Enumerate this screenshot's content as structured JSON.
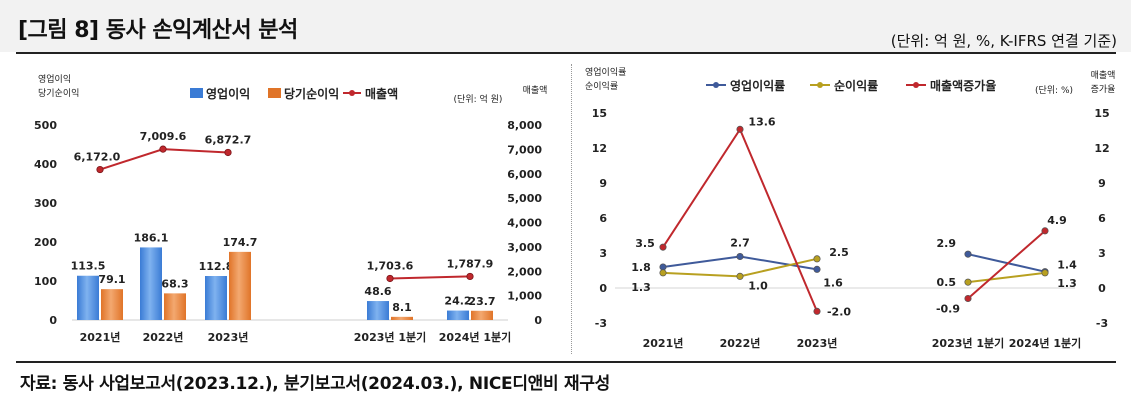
{
  "header": {
    "title": "[그림 8] 동사 손익계산서 분석",
    "unit_note": "(단위: 억 원, %, K-IFRS 연결 기준)"
  },
  "footer": {
    "source": "자료: 동사 사업보고서(2023.12.), 분기보고서(2024.03.), NICE디앤비 재구성"
  },
  "chart_data": [
    {
      "type": "bar",
      "title": "",
      "left_axis_label": [
        "영업이익",
        "당기순이익"
      ],
      "right_axis_label": "매출액",
      "unit_note": "(단위: 억 원)",
      "categories": [
        "2021년",
        "2022년",
        "2023년",
        "2023년 1분기",
        "2024년 1분기"
      ],
      "series": [
        {
          "name": "영업이익",
          "kind": "bar",
          "axis": "left",
          "color": "#3a7bd5",
          "values": [
            113.5,
            186.1,
            112.8,
            48.6,
            24.2
          ],
          "labels": [
            "113.5",
            "186.1",
            "112.8",
            "48.6",
            "24.2"
          ]
        },
        {
          "name": "당기순이익",
          "kind": "bar",
          "axis": "left",
          "color": "#e07428",
          "values": [
            79.1,
            68.3,
            174.7,
            8.1,
            23.7
          ],
          "labels": [
            "79.1",
            "68.3",
            "174.7",
            "8.1",
            "23.7"
          ]
        },
        {
          "name": "매출액",
          "kind": "line",
          "axis": "right",
          "color": "#c0282d",
          "values": [
            6172.0,
            7009.6,
            6872.7,
            1703.6,
            1787.9
          ],
          "labels": [
            "6,172.0",
            "7,009.6",
            "6,872.7",
            "1,703.6",
            "1,787.9"
          ]
        }
      ],
      "line_segments": [
        [
          0,
          1,
          2
        ],
        [
          3,
          4
        ]
      ],
      "ylim_left": [
        0,
        500
      ],
      "yticks_left": [
        "0",
        "100",
        "200",
        "300",
        "400",
        "500"
      ],
      "ylim_right": [
        0,
        8000
      ],
      "yticks_right": [
        "0",
        "1,000",
        "2,000",
        "3,000",
        "4,000",
        "5,000",
        "6,000",
        "7,000",
        "8,000"
      ],
      "legend_position": "top"
    },
    {
      "type": "line",
      "title": "",
      "left_axis_label": [
        "영업이익률",
        "순이익률"
      ],
      "right_axis_label": [
        "매출액",
        "증가율"
      ],
      "unit_note": "(단위: %)",
      "categories": [
        "2021년",
        "2022년",
        "2023년",
        "2023년 1분기",
        "2024년 1분기"
      ],
      "series": [
        {
          "name": "영업이익률",
          "color": "#3f5a9a",
          "values": [
            1.8,
            2.7,
            1.6,
            2.9,
            1.4
          ],
          "labels": [
            "1.8",
            "2.7",
            "1.6",
            "2.9",
            "1.4"
          ]
        },
        {
          "name": "순이익률",
          "color": "#b8a020",
          "values": [
            1.3,
            1.0,
            2.5,
            0.5,
            1.3
          ],
          "labels": [
            "1.3",
            "1.0",
            "2.5",
            "0.5",
            "1.3"
          ]
        },
        {
          "name": "매출액증가율",
          "color": "#c0282d",
          "values": [
            3.5,
            13.6,
            -2.0,
            -0.9,
            4.9
          ],
          "labels": [
            "3.5",
            "13.6",
            "-2.0",
            "-0.9",
            "4.9"
          ]
        }
      ],
      "line_segments": [
        [
          0,
          1,
          2
        ],
        [
          3,
          4
        ]
      ],
      "ylim": [
        -3,
        15
      ],
      "yticks": [
        "-3",
        "0",
        "3",
        "6",
        "9",
        "12",
        "15"
      ],
      "legend_position": "top"
    }
  ]
}
